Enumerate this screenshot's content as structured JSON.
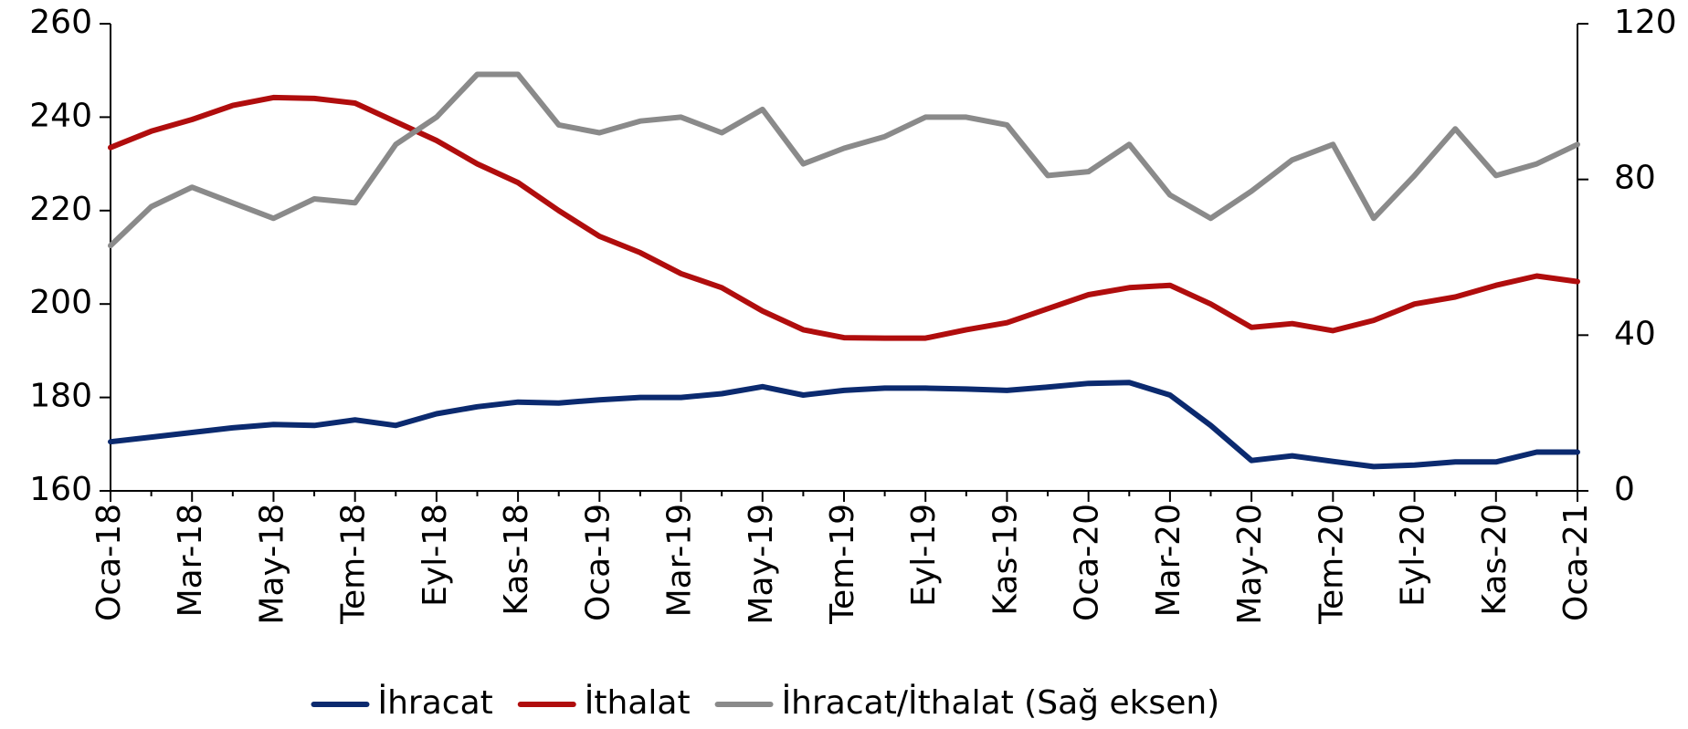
{
  "chart_data": {
    "type": "line",
    "categories": [
      "Oca-18",
      null,
      "Mar-18",
      null,
      "May-18",
      null,
      "Tem-18",
      null,
      "Eyl-18",
      null,
      "Kas-18",
      null,
      "Oca-19",
      null,
      "Mar-19",
      null,
      "May-19",
      null,
      "Tem-19",
      null,
      "Eyl-19",
      null,
      "Kas-19",
      null,
      "Oca-20",
      null,
      "Mar-20",
      null,
      "May-20",
      null,
      "Tem-20",
      null,
      "Eyl-20",
      null,
      "Kas-20",
      null,
      "Oca-21"
    ],
    "series": [
      {
        "name": "İhracat",
        "color": "#0b2a6f",
        "values": [
          170.5,
          171.5,
          172.5,
          173.5,
          174.2,
          174,
          175.2,
          174,
          176.5,
          178,
          179,
          178.8,
          179.5,
          180,
          180,
          180.8,
          182.3,
          180.5,
          181.5,
          182,
          182,
          181.8,
          181.5,
          182.2,
          183,
          183.2,
          180.5,
          174,
          166.5,
          167.5,
          166.3,
          165.2,
          165.5,
          166.2,
          166.2,
          168.3,
          168.3
        ]
      },
      {
        "name": "İthalat",
        "color": "#b00d0d",
        "values": [
          233.5,
          237,
          239.5,
          242.5,
          244.2,
          244,
          243,
          239,
          235,
          230,
          226,
          220,
          214.5,
          211,
          206.5,
          203.5,
          198.5,
          194.5,
          192.8,
          192.7,
          192.7,
          194.5,
          196,
          199,
          202,
          203.5,
          204,
          200,
          195,
          195.8,
          194.3,
          196.5,
          200,
          201.5,
          204,
          206,
          204.8
        ]
      },
      {
        "name": "İhracat/İthalat (Sağ eksen)",
        "color": "#8a8a8a",
        "axis": "y2",
        "values": [
          63,
          73,
          78,
          74,
          70,
          75,
          74,
          89,
          96,
          107,
          107,
          94,
          92,
          95,
          96,
          92,
          98,
          84,
          88,
          91,
          96,
          96,
          94,
          81,
          82,
          89,
          76,
          70,
          77,
          85,
          89,
          70,
          81,
          93,
          81,
          84,
          89
        ]
      }
    ],
    "ylim": [
      160,
      260
    ],
    "yticks": [
      160,
      180,
      200,
      220,
      240,
      260
    ],
    "y2lim": [
      0,
      120
    ],
    "y2ticks": [
      0,
      40,
      80,
      120
    ],
    "grid": false,
    "legend": "bottom"
  }
}
